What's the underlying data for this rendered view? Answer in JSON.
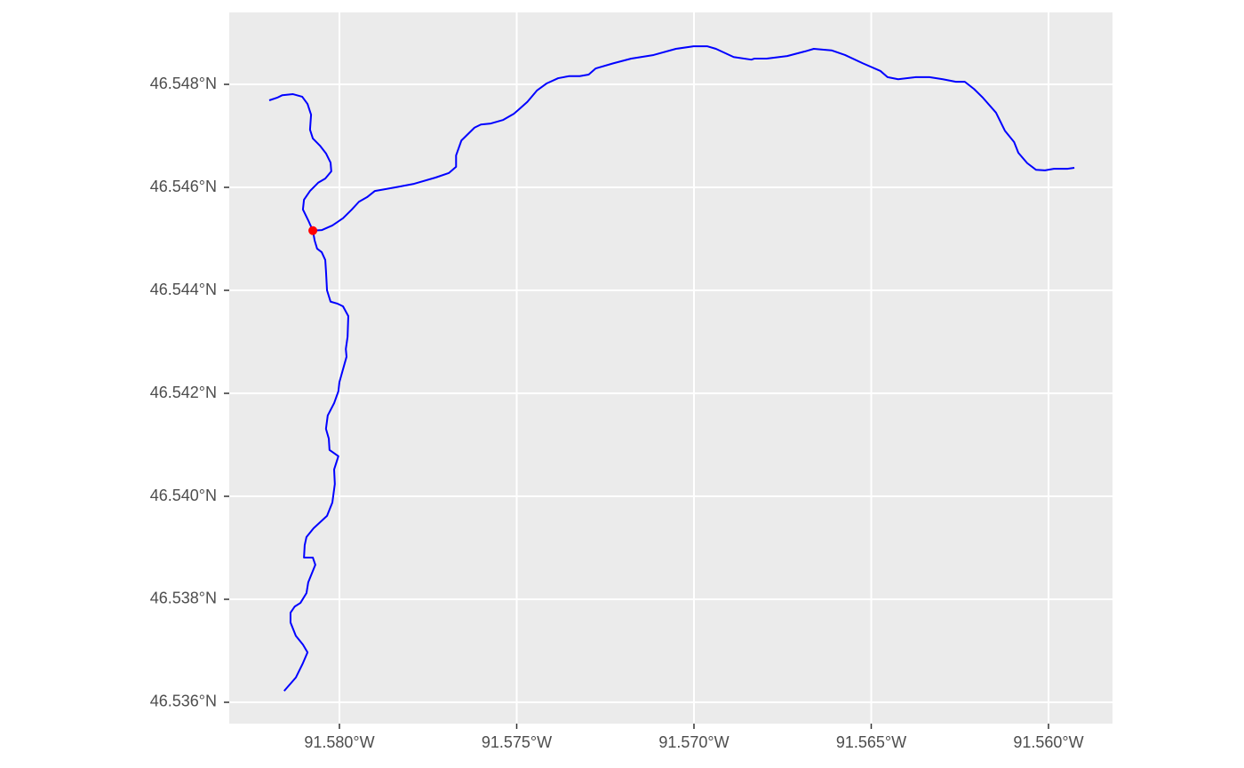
{
  "chart_data": {
    "type": "line",
    "grid": true,
    "background": "#ebebeb",
    "xlim": [
      -91.583108,
      -91.558195
    ],
    "ylim": [
      46.535586,
      46.549397
    ],
    "xticks": [
      {
        "value": -91.58,
        "label": "91.580°W"
      },
      {
        "value": -91.575,
        "label": "91.575°W"
      },
      {
        "value": -91.57,
        "label": "91.570°W"
      },
      {
        "value": -91.565,
        "label": "91.565°W"
      },
      {
        "value": -91.56,
        "label": "91.560°W"
      }
    ],
    "yticks": [
      {
        "value": 46.536,
        "label": "46.536°N"
      },
      {
        "value": 46.538,
        "label": "46.538°N"
      },
      {
        "value": 46.54,
        "label": "46.540°N"
      },
      {
        "value": 46.542,
        "label": "46.542°N"
      },
      {
        "value": 46.544,
        "label": "46.544°N"
      },
      {
        "value": 46.546,
        "label": "46.546°N"
      },
      {
        "value": 46.548,
        "label": "46.548°N"
      }
    ],
    "series": [
      {
        "color": "#0000ff",
        "x": [
          -91.58156,
          -91.58123,
          -91.58103,
          -91.5809,
          -91.58103,
          -91.58123,
          -91.58138,
          -91.58138,
          -91.58126,
          -91.5811,
          -91.58093,
          -91.58088,
          -91.58068,
          -91.58075,
          -91.581,
          -91.58098,
          -91.58093,
          -91.58073,
          -91.58035,
          -91.5802,
          -91.58013,
          -91.58015,
          -91.58003,
          -91.58028,
          -91.5803,
          -91.58038,
          -91.58033,
          -91.58015,
          -91.58003,
          -91.58,
          -91.5798,
          -91.57982,
          -91.57977,
          -91.57975,
          -91.5799,
          -91.58005,
          -91.58025,
          -91.58035,
          -91.58038,
          -91.5804,
          -91.5805,
          -91.58063,
          -91.5807,
          -91.58075,
          -91.58088,
          -91.58103,
          -91.581,
          -91.58083,
          -91.5806,
          -91.5804,
          -91.58023,
          -91.58025,
          -91.58038,
          -91.58055,
          -91.58075,
          -91.58083,
          -91.5808,
          -91.5809,
          -91.58105,
          -91.58131,
          -91.58161,
          -91.58176,
          -91.58198
        ],
        "y": [
          46.53622,
          46.53648,
          46.53676,
          46.53697,
          46.53712,
          46.53729,
          46.53755,
          46.53774,
          46.53786,
          46.53793,
          46.53812,
          46.53833,
          46.53867,
          46.53881,
          46.53881,
          46.53905,
          46.53921,
          46.53938,
          46.53962,
          46.53988,
          46.54024,
          46.54052,
          46.54078,
          46.5409,
          46.54112,
          46.54131,
          46.54157,
          46.54181,
          46.54204,
          46.54222,
          46.54271,
          46.54286,
          46.5431,
          46.5435,
          46.54369,
          46.54374,
          46.54378,
          46.544,
          46.54438,
          46.54459,
          46.54474,
          46.54481,
          46.54497,
          46.54516,
          46.54536,
          46.54557,
          46.54576,
          46.54593,
          46.54609,
          46.54617,
          46.54631,
          46.54648,
          46.54666,
          46.54681,
          46.54695,
          46.54712,
          46.54741,
          46.54762,
          46.54776,
          46.54781,
          46.54779,
          46.54774,
          46.54769
        ]
      },
      {
        "color": "#0000ff",
        "x": [
          -91.58075,
          -91.5805,
          -91.5802,
          -91.5799,
          -91.57965,
          -91.57945,
          -91.57922,
          -91.579,
          -91.57842,
          -91.57789,
          -91.57729,
          -91.57691,
          -91.57671,
          -91.57671,
          -91.57656,
          -91.57619,
          -91.57601,
          -91.57573,
          -91.57538,
          -91.57508,
          -91.57496,
          -91.5747,
          -91.57443,
          -91.57415,
          -91.57383,
          -91.57352,
          -91.57322,
          -91.57297,
          -91.57277,
          -91.57227,
          -91.57177,
          -91.57114,
          -91.57051,
          -91.57001,
          -91.56963,
          -91.56938,
          -91.56888,
          -91.56838,
          -91.5683,
          -91.56795,
          -91.56737,
          -91.56687,
          -91.56662,
          -91.56612,
          -91.56574,
          -91.56524,
          -91.56474,
          -91.56454,
          -91.56424,
          -91.56374,
          -91.56336,
          -91.56298,
          -91.56261,
          -91.56236,
          -91.5621,
          -91.56185,
          -91.56148,
          -91.56123,
          -91.56097,
          -91.56085,
          -91.5606,
          -91.56035,
          -91.5601,
          -91.55985,
          -91.55947,
          -91.55927
        ],
        "y": [
          46.54516,
          46.54517,
          46.54526,
          46.5454,
          46.54557,
          46.54572,
          46.54581,
          46.54593,
          46.546,
          46.54607,
          46.54619,
          46.54628,
          46.5464,
          46.54662,
          46.54691,
          46.54716,
          46.54722,
          46.54724,
          46.54731,
          46.54743,
          46.5475,
          46.54766,
          46.54788,
          46.54802,
          46.54812,
          46.54816,
          46.54816,
          46.54819,
          46.54831,
          46.54841,
          46.5485,
          46.54857,
          46.54869,
          46.54874,
          46.54874,
          46.54869,
          46.54853,
          46.54848,
          46.5485,
          46.5485,
          46.54855,
          46.54864,
          46.54869,
          46.54866,
          46.54857,
          46.54841,
          46.54826,
          46.54814,
          46.5481,
          46.54814,
          46.54814,
          46.5481,
          46.54805,
          46.54805,
          46.54791,
          46.54774,
          46.54745,
          46.5471,
          46.54688,
          46.54667,
          46.54647,
          46.54634,
          46.54633,
          46.54636,
          46.54636,
          46.54638
        ]
      }
    ],
    "points": {
      "color": "#ff0000",
      "x": [
        -91.58075
      ],
      "y": [
        46.54516
      ]
    }
  }
}
